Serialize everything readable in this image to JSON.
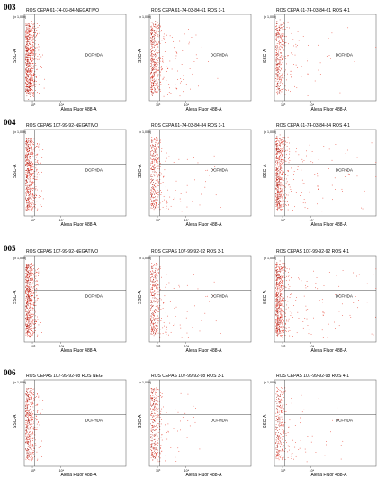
{
  "figure": {
    "rows": [
      {
        "label": "003",
        "panels": [
          {
            "title": "ROS CEPA 61-74-03-84-NEGATIVO",
            "gate_label": "DCFHDA",
            "density": 1.0,
            "spread": 0.06
          },
          {
            "title": "ROS CEPA 61-74-03-84-61 ROS 3-1",
            "gate_label": "DCFHDA",
            "density": 0.7,
            "spread": 0.25
          },
          {
            "title": "ROS CEPA 61-74-03-84-61 ROS 4-1",
            "gate_label": "DCFHDA",
            "density": 0.55,
            "spread": 0.3
          }
        ]
      },
      {
        "label": "004",
        "panels": [
          {
            "title": "ROS CEPAS 107-99-92-NEGATIVO",
            "gate_label": "DCFHDA",
            "density": 0.85,
            "spread": 0.07
          },
          {
            "title": "ROS CEPA 61-74-03-84-84 ROS 3-1",
            "gate_label": "DCFHDA",
            "density": 0.55,
            "spread": 0.3
          },
          {
            "title": "ROS CEPA 61-74-03-84-84 ROS 4-1",
            "gate_label": "DCFHDA",
            "density": 0.9,
            "spread": 0.4
          }
        ]
      },
      {
        "label": "005",
        "panels": [
          {
            "title": "ROS CEPAS 107-99-92-NEGATIVO",
            "gate_label": "DCFHDA",
            "density": 0.9,
            "spread": 0.05
          },
          {
            "title": "ROS CEPAS 107-99-92-92 ROS 3-1",
            "gate_label": "DCFHDA",
            "density": 0.55,
            "spread": 0.3
          },
          {
            "title": "ROS CEPAS 107-99-92-92 ROS 4-1",
            "gate_label": "DCFHDA",
            "density": 0.95,
            "spread": 0.45
          }
        ]
      },
      {
        "label": "006",
        "panels": [
          {
            "title": "ROS CEPAS 107-99-92-98 ROS NEG",
            "gate_label": "DCFHDA",
            "density": 0.65,
            "spread": 0.07
          },
          {
            "title": "ROS CEPAS 107-99-92-98 ROS 3-1",
            "gate_label": "DCFHDA",
            "density": 0.5,
            "spread": 0.2
          },
          {
            "title": "ROS CEPAS 107-99-92-98 ROS 4-1",
            "gate_label": "DCFHDA",
            "density": 0.45,
            "spread": 0.3
          }
        ]
      }
    ]
  },
  "axes": {
    "xlabel": "Alexa Fluor 488-A",
    "ylabel": "SSC-A",
    "yunit": "(x 1,000)",
    "xticks": [
      "10³",
      "10⁴"
    ]
  },
  "chart_data": {
    "type": "scatter",
    "xlabel": "Alexa Fluor 488-A",
    "ylabel": "SSC-A",
    "xscale": "log",
    "gate": "DCFHDA",
    "grid": false,
    "colors": {
      "points": "#e32b1a",
      "points_dense": "#9e1208"
    }
  }
}
